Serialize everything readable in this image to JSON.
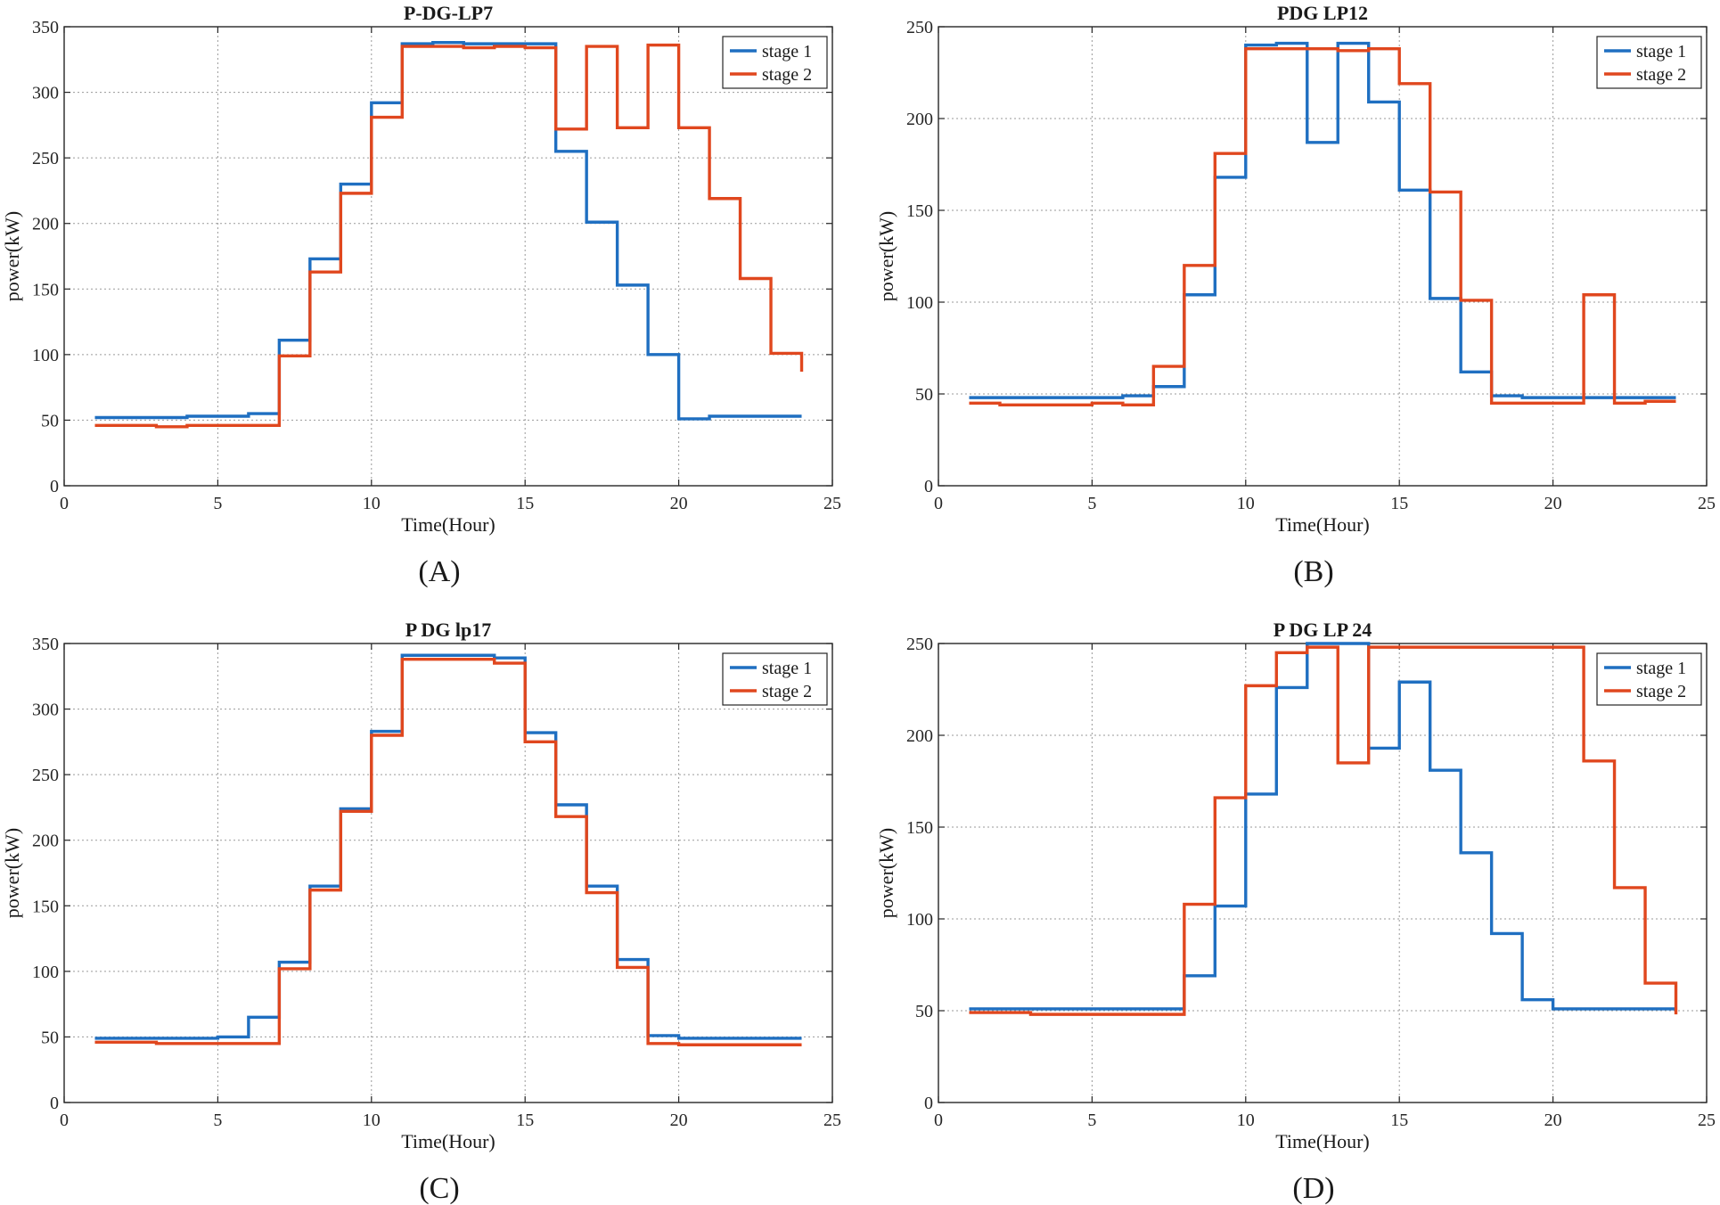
{
  "chart_data": [
    {
      "type": "line",
      "step": "post",
      "panel_label": "(A)",
      "title": "P-DG-LP7",
      "xlabel": "Time(Hour)",
      "ylabel": "power(kW)",
      "xlim": [
        0,
        25
      ],
      "ylim": [
        0,
        350
      ],
      "xticks": [
        0,
        5,
        10,
        15,
        20,
        25
      ],
      "yticks": [
        0,
        50,
        100,
        150,
        200,
        250,
        300,
        350
      ],
      "grid": true,
      "legend_position": "top-right",
      "x": [
        1,
        2,
        3,
        4,
        5,
        6,
        7,
        8,
        9,
        10,
        11,
        12,
        13,
        14,
        15,
        16,
        17,
        18,
        19,
        20,
        21,
        22,
        23,
        24
      ],
      "series": [
        {
          "name": "stage 1",
          "color": "#1f6fc1",
          "values": [
            52,
            52,
            52,
            53,
            53,
            55,
            111,
            173,
            230,
            292,
            337,
            338,
            337,
            337,
            337,
            255,
            201,
            153,
            100,
            51,
            53,
            53,
            53,
            53
          ]
        },
        {
          "name": "stage 2",
          "color": "#e0471e",
          "values": [
            46,
            46,
            45,
            46,
            46,
            46,
            99,
            163,
            223,
            281,
            335,
            335,
            334,
            335,
            334,
            272,
            335,
            273,
            336,
            273,
            219,
            158,
            101,
            87
          ]
        }
      ]
    },
    {
      "type": "line",
      "step": "post",
      "panel_label": "(B)",
      "title": "PDG LP12",
      "xlabel": "Time(Hour)",
      "ylabel": "power(kW)",
      "xlim": [
        0,
        25
      ],
      "ylim": [
        0,
        250
      ],
      "xticks": [
        0,
        5,
        10,
        15,
        20,
        25
      ],
      "yticks": [
        0,
        50,
        100,
        150,
        200,
        250
      ],
      "grid": true,
      "legend_position": "top-right",
      "x": [
        1,
        2,
        3,
        4,
        5,
        6,
        7,
        8,
        9,
        10,
        11,
        12,
        13,
        14,
        15,
        16,
        17,
        18,
        19,
        20,
        21,
        22,
        23,
        24
      ],
      "series": [
        {
          "name": "stage 1",
          "color": "#1f6fc1",
          "values": [
            48,
            48,
            48,
            48,
            48,
            49,
            54,
            104,
            168,
            240,
            241,
            187,
            241,
            209,
            161,
            102,
            62,
            49,
            48,
            48,
            48,
            48,
            48,
            48
          ]
        },
        {
          "name": "stage 2",
          "color": "#e0471e",
          "values": [
            45,
            44,
            44,
            44,
            45,
            44,
            65,
            120,
            181,
            238,
            238,
            238,
            237,
            238,
            219,
            160,
            101,
            45,
            45,
            45,
            104,
            45,
            46,
            46
          ]
        }
      ]
    },
    {
      "type": "line",
      "step": "post",
      "panel_label": "(C)",
      "title": "P DG lp17",
      "xlabel": "Time(Hour)",
      "ylabel": "power(kW)",
      "xlim": [
        0,
        25
      ],
      "ylim": [
        0,
        350
      ],
      "xticks": [
        0,
        5,
        10,
        15,
        20,
        25
      ],
      "yticks": [
        0,
        50,
        100,
        150,
        200,
        250,
        300,
        350
      ],
      "grid": true,
      "legend_position": "top-right",
      "x": [
        1,
        2,
        3,
        4,
        5,
        6,
        7,
        8,
        9,
        10,
        11,
        12,
        13,
        14,
        15,
        16,
        17,
        18,
        19,
        20,
        21,
        22,
        23,
        24
      ],
      "series": [
        {
          "name": "stage 1",
          "color": "#1f6fc1",
          "values": [
            49,
            49,
            49,
            49,
            50,
            65,
            107,
            165,
            224,
            283,
            341,
            341,
            341,
            339,
            282,
            227,
            165,
            109,
            51,
            49,
            49,
            49,
            49,
            49
          ]
        },
        {
          "name": "stage 2",
          "color": "#e0471e",
          "values": [
            46,
            46,
            45,
            45,
            45,
            45,
            102,
            162,
            222,
            280,
            338,
            338,
            338,
            335,
            275,
            218,
            160,
            103,
            45,
            44,
            44,
            44,
            44,
            44
          ]
        }
      ]
    },
    {
      "type": "line",
      "step": "post",
      "panel_label": "(D)",
      "title": "P DG LP 24",
      "xlabel": "Time(Hour)",
      "ylabel": "power(kW)",
      "xlim": [
        0,
        25
      ],
      "ylim": [
        0,
        250
      ],
      "xticks": [
        0,
        5,
        10,
        15,
        20,
        25
      ],
      "yticks": [
        0,
        50,
        100,
        150,
        200,
        250
      ],
      "grid": true,
      "legend_position": "top-right",
      "x": [
        1,
        2,
        3,
        4,
        5,
        6,
        7,
        8,
        9,
        10,
        11,
        12,
        13,
        14,
        15,
        16,
        17,
        18,
        19,
        20,
        21,
        22,
        23,
        24
      ],
      "series": [
        {
          "name": "stage 1",
          "color": "#1f6fc1",
          "values": [
            51,
            51,
            51,
            51,
            51,
            51,
            51,
            69,
            107,
            168,
            226,
            250,
            250,
            193,
            229,
            181,
            136,
            92,
            56,
            51,
            51,
            51,
            51,
            51
          ]
        },
        {
          "name": "stage 2",
          "color": "#e0471e",
          "values": [
            49,
            49,
            48,
            48,
            48,
            48,
            48,
            108,
            166,
            227,
            245,
            248,
            185,
            248,
            248,
            248,
            248,
            248,
            248,
            248,
            186,
            117,
            65,
            48
          ]
        }
      ]
    }
  ]
}
